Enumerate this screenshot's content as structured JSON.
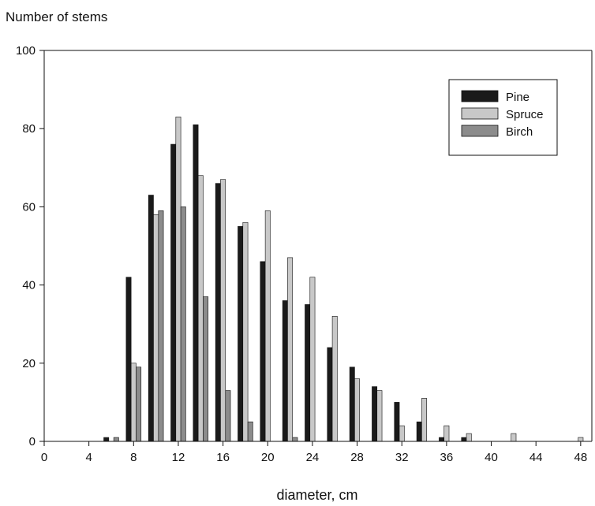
{
  "chart_data": {
    "type": "bar",
    "title": "",
    "ylabel": "Number of stems",
    "xlabel": "diameter, cm",
    "ylim": [
      0,
      100
    ],
    "xlim": [
      0,
      49
    ],
    "y_ticks": [
      0,
      20,
      40,
      60,
      80,
      100
    ],
    "x_ticks": [
      0,
      4,
      8,
      12,
      16,
      20,
      24,
      28,
      32,
      36,
      40,
      44,
      48
    ],
    "grid": false,
    "legend_position": "top-right",
    "categories": [
      6,
      8,
      10,
      12,
      14,
      16,
      18,
      20,
      22,
      24,
      26,
      28,
      30,
      32,
      34,
      36,
      38,
      42,
      48
    ],
    "series": [
      {
        "name": "Pine",
        "color": "#1a1a1a",
        "values": [
          1,
          42,
          63,
          76,
          81,
          66,
          55,
          46,
          36,
          35,
          24,
          19,
          14,
          10,
          5,
          1,
          1,
          0,
          0
        ]
      },
      {
        "name": "Spruce",
        "color": "#c8c8c8",
        "values": [
          0,
          20,
          58,
          83,
          68,
          67,
          56,
          59,
          47,
          42,
          32,
          16,
          13,
          4,
          11,
          4,
          2,
          2,
          1
        ]
      },
      {
        "name": "Birch",
        "color": "#8c8c8c",
        "values": [
          1,
          19,
          59,
          60,
          37,
          13,
          5,
          0,
          1,
          0,
          0,
          0,
          0,
          0,
          0,
          0,
          0,
          0,
          0
        ]
      }
    ]
  }
}
